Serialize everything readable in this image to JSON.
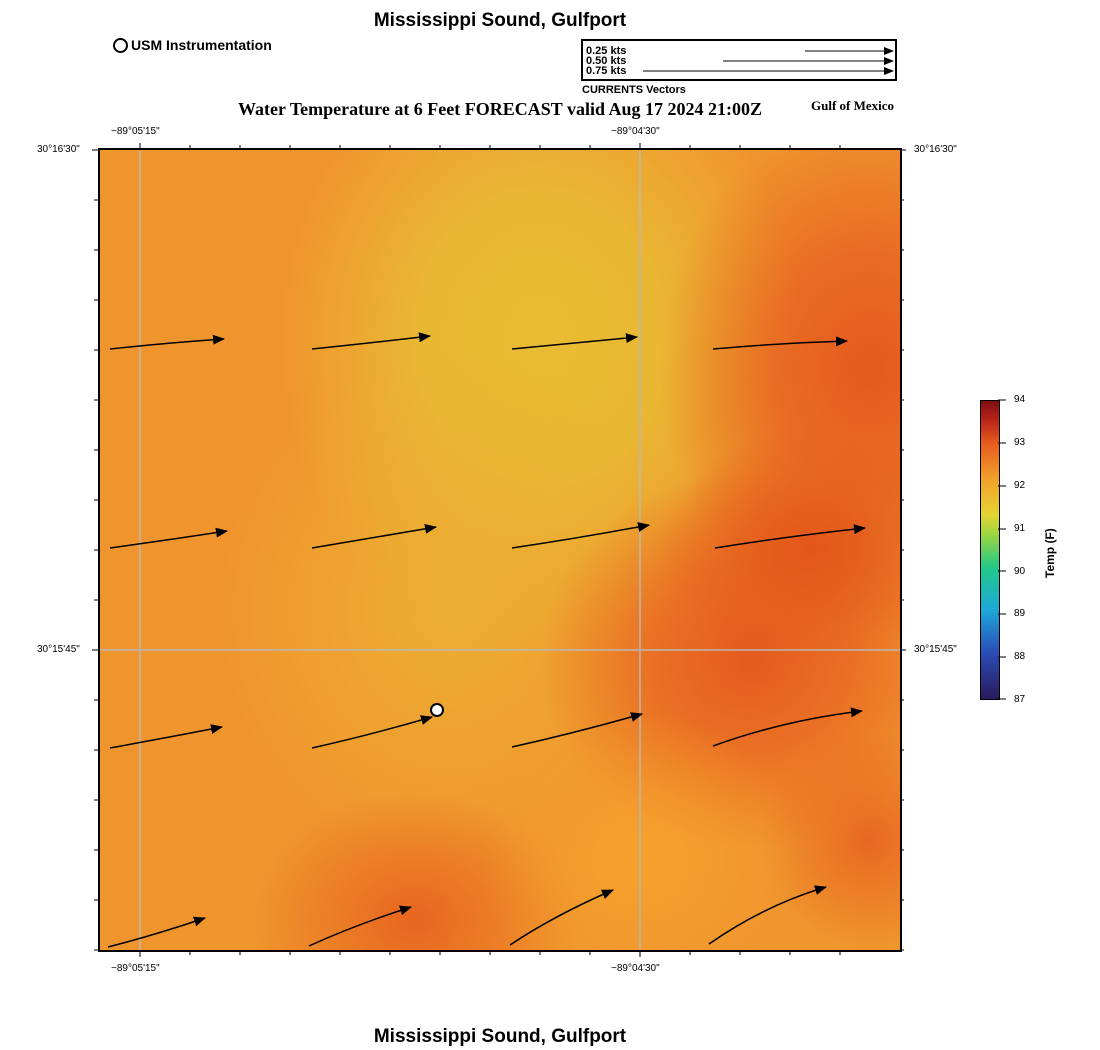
{
  "header": {
    "site_title": "Mississippi Sound, Gulfport",
    "usm_legend": "USM Instrumentation",
    "main_title": "Water Temperature at 6 Feet FORECAST valid Aug 17 2024 21:00Z",
    "region": "Gulf of Mexico"
  },
  "vector_scale": {
    "entries": [
      "0.25 kts",
      "0.50 kts",
      "0.75 kts"
    ],
    "values_kts": [
      0.25,
      0.5,
      0.75
    ],
    "caption": "CURRENTS Vectors"
  },
  "axes": {
    "lon_ticks": [
      "−89°05'15\"",
      "−89°04'30\""
    ],
    "lat_ticks": [
      "30°16'30\"",
      "30°15'45\""
    ]
  },
  "colorbar": {
    "label": "Temp (F)",
    "ticks": [
      "94",
      "93",
      "92",
      "91",
      "90",
      "89",
      "88",
      "87"
    ],
    "min": 87,
    "max": 94
  },
  "station": {
    "name": "USM Instrumentation",
    "marker": "circle-icon"
  },
  "colors": {
    "warm": "#e65a1e",
    "mid": "#f0952e",
    "cool": "#e8bc32",
    "arrow": "#000000"
  },
  "footer": {
    "site_title": "Mississippi Sound, Gulfport"
  }
}
